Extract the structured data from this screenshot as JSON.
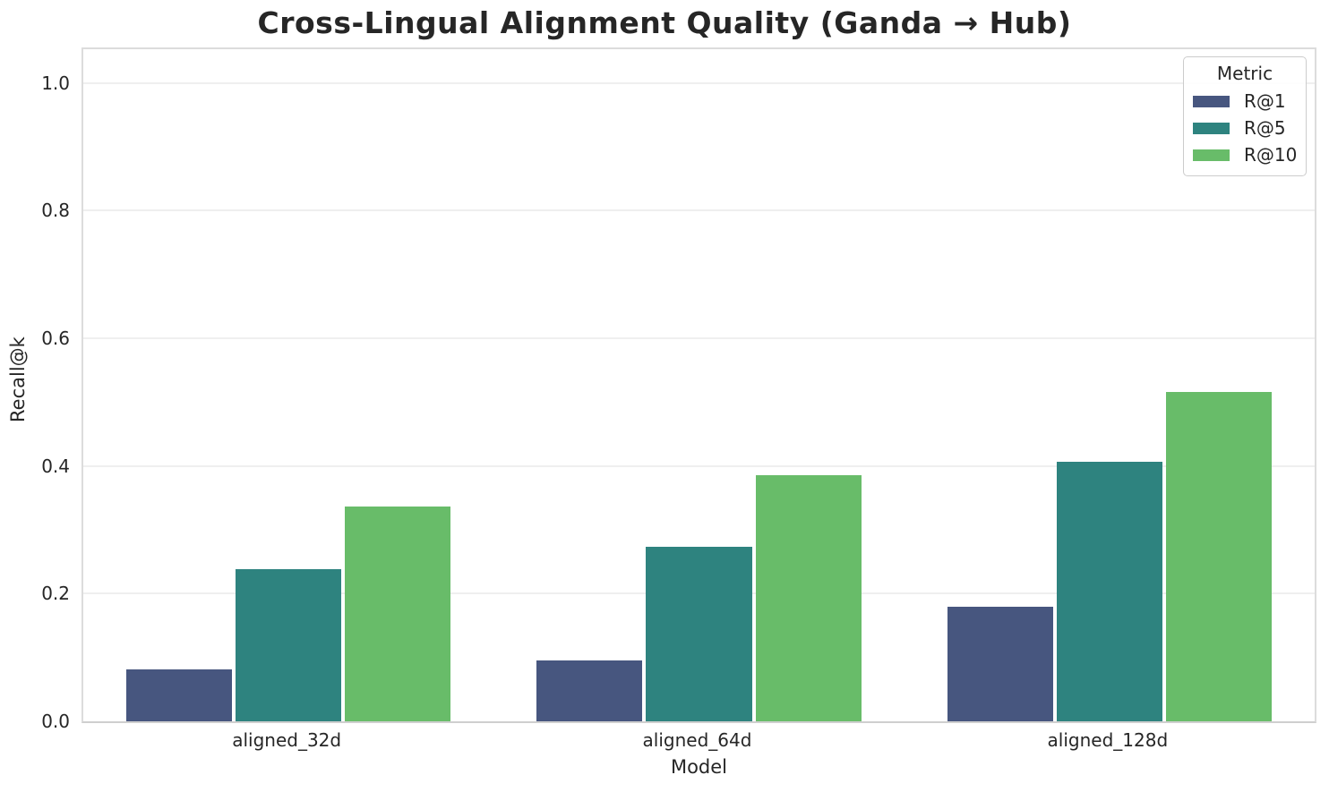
{
  "chart_data": {
    "type": "bar",
    "title": "Cross-Lingual Alignment Quality (Ganda → Hub)",
    "xlabel": "Model",
    "ylabel": "Recall@k",
    "categories": [
      "aligned_32d",
      "aligned_64d",
      "aligned_128d"
    ],
    "series": [
      {
        "name": "R@1",
        "color": "#47567F",
        "values": [
          0.082,
          0.096,
          0.179
        ]
      },
      {
        "name": "R@5",
        "color": "#2E837F",
        "values": [
          0.238,
          0.274,
          0.406
        ]
      },
      {
        "name": "R@10",
        "color": "#68BC69",
        "values": [
          0.337,
          0.386,
          0.516
        ]
      }
    ],
    "yticks": [
      0,
      0.2,
      0.4,
      0.6,
      0.8,
      1.0
    ],
    "ytick_labels": [
      "0.0",
      "0.2",
      "0.4",
      "0.6",
      "0.8",
      "1.0"
    ],
    "ylim": [
      0,
      1.053
    ],
    "bar_group_width_frac": 0.8,
    "grid": "horizontal",
    "legend": {
      "title": "Metric",
      "position": "upper-right"
    }
  },
  "style_colors": {
    "grid_line": "#efefef",
    "spine": "#dcdcdc",
    "text": "#262626",
    "legend_border": "#cccccc",
    "background": "#ffffff"
  }
}
